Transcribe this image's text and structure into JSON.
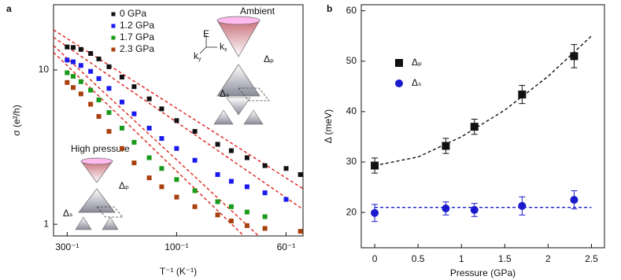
{
  "chart_data": [
    {
      "type": "scatter",
      "label": "a",
      "xlabel": "T⁻¹ (K⁻¹)",
      "ylabel": "σ (e²/h)",
      "xlim": [
        0.0025,
        0.0177
      ],
      "ylim": [
        0.84,
        26.5
      ],
      "ylog": true,
      "legend": "upper center",
      "xticks": [
        {
          "value": 0.003333,
          "label": "300⁻¹"
        },
        {
          "value": 0.01,
          "label": "100⁻¹"
        },
        {
          "value": 0.016667,
          "label": "60⁻¹"
        }
      ],
      "yticks": [
        1,
        10
      ],
      "series": [
        {
          "name": "0 GPa",
          "color": "#111111",
          "marker": "square",
          "x": [
            0.00333,
            0.0037,
            0.00417,
            0.00476,
            0.00526,
            0.00588,
            0.00667,
            0.00741,
            0.00833,
            0.00909,
            0.01,
            0.01111,
            0.0125,
            0.01333,
            0.01429,
            0.01538,
            0.01667,
            0.01754
          ],
          "values": [
            14.1,
            14,
            13.6,
            12.8,
            11.8,
            10.5,
            9.0,
            7.8,
            6.5,
            5.6,
            4.7,
            4.0,
            3.3,
            3.0,
            2.7,
            2.4,
            2.3,
            2.1
          ]
        },
        {
          "name": "1.2 GPa",
          "color": "#1a1aee",
          "marker": "square",
          "x": [
            0.00333,
            0.0037,
            0.00417,
            0.00476,
            0.00526,
            0.00588,
            0.00667,
            0.00741,
            0.00833,
            0.00909,
            0.01,
            0.01111,
            0.0125,
            0.01333,
            0.01429,
            0.01538,
            0.01667
          ],
          "values": [
            11.6,
            11.3,
            10.7,
            9.8,
            8.8,
            7.6,
            6.2,
            5.2,
            4.2,
            3.6,
            3.1,
            2.6,
            2.1,
            1.9,
            1.75,
            1.6,
            1.45
          ]
        },
        {
          "name": "1.7 GPa",
          "color": "#1a9a1a",
          "marker": "square",
          "x": [
            0.00333,
            0.0037,
            0.00417,
            0.00476,
            0.00526,
            0.00588,
            0.00667,
            0.00741,
            0.00833,
            0.00909,
            0.01,
            0.01111,
            0.0125,
            0.01333,
            0.01429,
            0.01538
          ],
          "values": [
            9.6,
            9.1,
            8.4,
            7.4,
            6.4,
            5.3,
            4.2,
            3.4,
            2.7,
            2.3,
            1.95,
            1.65,
            1.4,
            1.3,
            1.2,
            1.12
          ]
        },
        {
          "name": "2.3 GPa",
          "color": "#a8410f",
          "marker": "square",
          "x": [
            0.00333,
            0.0037,
            0.00417,
            0.00476,
            0.00526,
            0.00588,
            0.00667,
            0.00741,
            0.00833,
            0.00909,
            0.01,
            0.01111,
            0.0125,
            0.01333,
            0.01429,
            0.01538,
            0.01754
          ],
          "values": [
            8.3,
            7.7,
            7.0,
            6.0,
            5.0,
            4.0,
            3.1,
            2.5,
            2.0,
            1.75,
            1.5,
            1.3,
            1.15,
            1.05,
            0.98,
            0.94,
            0.9
          ]
        }
      ],
      "fits": [
        {
          "color": "#e0201a",
          "x": [
            0.0025,
            0.0177
          ],
          "values": [
            18.2,
            1.7
          ]
        },
        {
          "color": "#e0201a",
          "x": [
            0.0025,
            0.0177
          ],
          "values": [
            16.3,
            1.25
          ]
        },
        {
          "color": "#e0201a",
          "x": [
            0.0025,
            0.015
          ],
          "values": [
            14.4,
            0.84
          ]
        },
        {
          "color": "#e0201a",
          "x": [
            0.0025,
            0.0141
          ],
          "values": [
            13.0,
            0.84
          ]
        }
      ],
      "annotations": {
        "ambient": "Ambient",
        "high_pressure": "High pressure",
        "energy": "E",
        "kx": {
          "base": "k",
          "sub": "x"
        },
        "ky": {
          "base": "k",
          "sub": "y"
        },
        "gap_p": "Δₚ",
        "gap_s": "Δₛ"
      }
    },
    {
      "type": "scatter",
      "label": "b",
      "xlabel": "Pressure (GPa)",
      "ylabel": "Δ (meV)",
      "xlim": [
        -0.155,
        2.65
      ],
      "ylim": [
        13,
        61.2
      ],
      "legend": "upper left",
      "xticks": [
        0,
        0.5,
        1,
        1.5,
        2,
        2.5
      ],
      "yticks": [
        20,
        30,
        40,
        50,
        60
      ],
      "series": [
        {
          "name": "Δₚ",
          "color": "#111111",
          "marker": "square",
          "x": [
            0,
            0.82,
            1.15,
            1.7,
            2.3
          ],
          "values": [
            29.3,
            33.2,
            37,
            43.4,
            51
          ],
          "errors": [
            1.5,
            1.5,
            1.5,
            1.8,
            2.3
          ]
        },
        {
          "name": "Δₛ",
          "color": "#1a1acc",
          "marker": "circle",
          "x": [
            0,
            0.82,
            1.15,
            1.7,
            2.3
          ],
          "values": [
            19.9,
            20.8,
            20.5,
            21.3,
            22.5
          ],
          "errors": [
            1.7,
            1.3,
            1.3,
            1.8,
            1.8
          ]
        }
      ],
      "fits": [
        {
          "color": "#111111",
          "x": [
            0,
            0.5,
            1,
            1.5,
            2,
            2.5
          ],
          "values": [
            29.3,
            31.0,
            35.0,
            40.3,
            47.0,
            55.0
          ]
        },
        {
          "color": "#1a1acc",
          "x": [
            0,
            2.5
          ],
          "values": [
            21,
            21
          ]
        }
      ]
    }
  ]
}
